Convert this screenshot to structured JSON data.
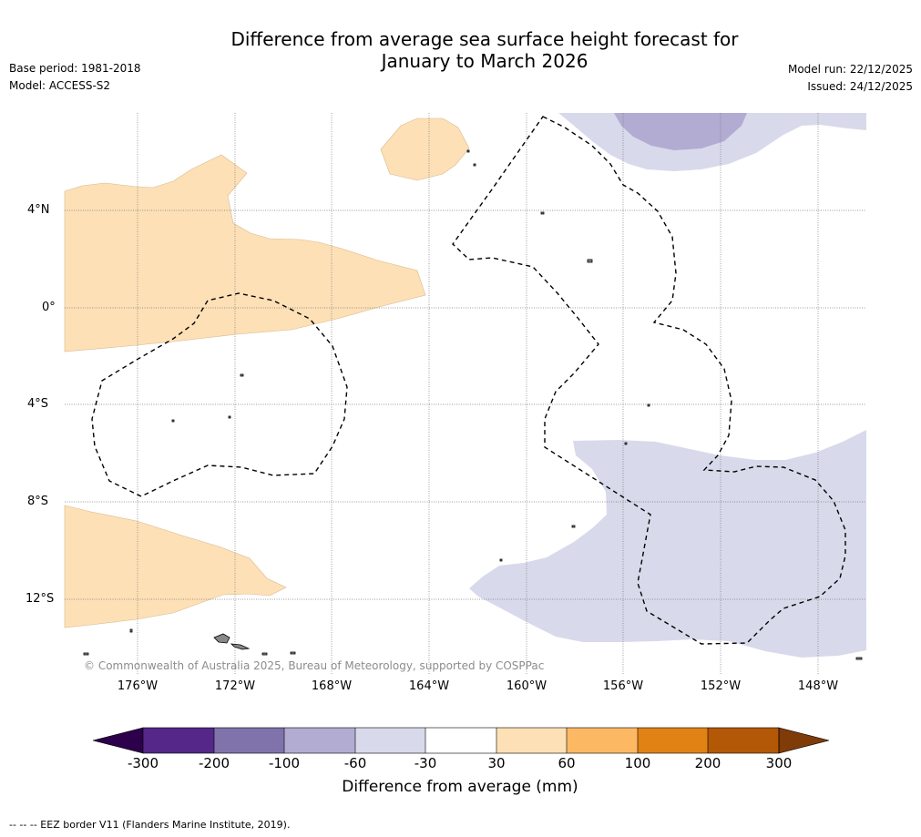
{
  "title_line1": "Difference from average sea surface height forecast for",
  "title_line2": "January to March 2026",
  "base_period": "Base period: 1981-2018",
  "model": "Model: ACCESS-S2",
  "model_run": "Model run: 22/12/2025",
  "issued": "Issued: 24/12/2025",
  "latitude_labels": [
    "4°N",
    "0°",
    "4°S",
    "8°S",
    "12°S"
  ],
  "longitude_labels": [
    "176°W",
    "172°W",
    "168°W",
    "164°W",
    "160°W",
    "156°W",
    "152°W",
    "148°W"
  ],
  "copyright": "© Commonwealth of Australia 2025, Bureau of Meteorology, supported by COSPPac",
  "colorbar": {
    "ticks": [
      "-300",
      "-200",
      "-100",
      "-60",
      "-30",
      "30",
      "60",
      "100",
      "200",
      "300"
    ],
    "colors": [
      "#2d004b",
      "#542788",
      "#8073ac",
      "#b2abd2",
      "#d8daeb",
      "#ffffff",
      "#fee0b6",
      "#fdb863",
      "#e08214",
      "#b35806",
      "#7f3b08"
    ],
    "label": "Difference from average (mm)"
  },
  "footnote": "--  --  -- EEZ border V11 (Flanders Marine Institute, 2019)."
}
